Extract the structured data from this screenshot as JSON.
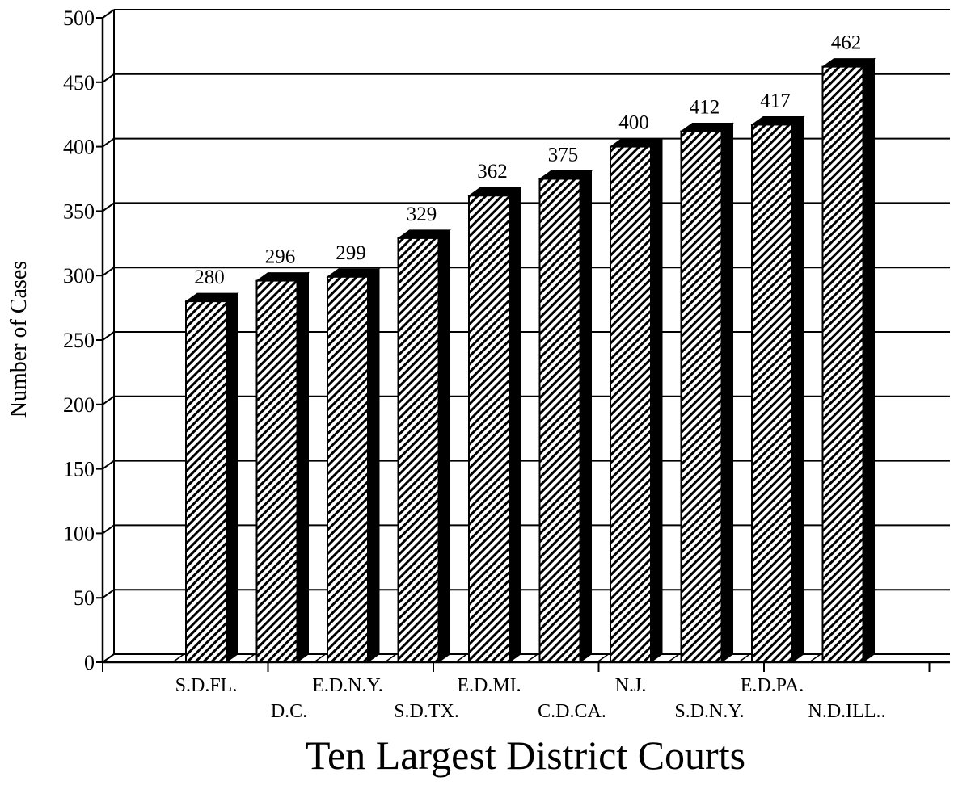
{
  "chart_data": {
    "type": "bar",
    "categories": [
      "S.D.FL.",
      "D.C.",
      "E.D.N.Y.",
      "S.D.TX.",
      "E.D.MI.",
      "C.D.CA.",
      "N.J.",
      "S.D.N.Y.",
      "E.D.PA.",
      "N.D.ILL.."
    ],
    "values": [
      280,
      296,
      299,
      329,
      362,
      375,
      400,
      412,
      417,
      462
    ],
    "value_labels": [
      "280",
      "296",
      "299",
      "329",
      "362",
      "375",
      "400",
      "412",
      "417",
      "462"
    ],
    "xlabel": "Ten Largest District Courts",
    "ylabel": "Number of Cases",
    "ylim": [
      0,
      500
    ],
    "yticks": [
      0,
      50,
      100,
      150,
      200,
      250,
      300,
      350,
      400,
      450,
      500
    ],
    "grid": true,
    "style": "3d-hatched"
  }
}
